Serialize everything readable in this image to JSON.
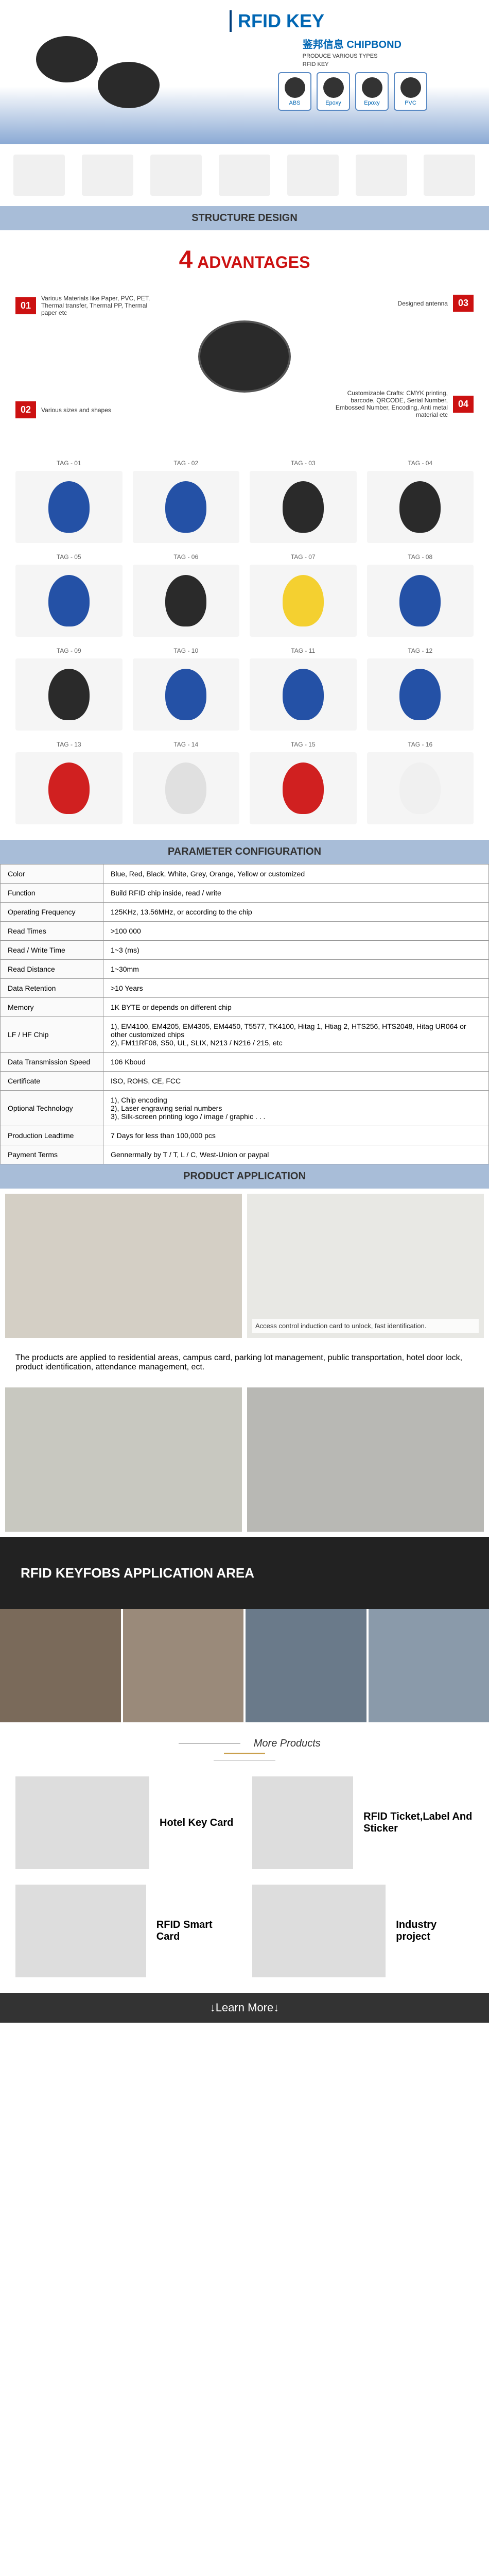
{
  "hero": {
    "title": "RFID KEY",
    "brand": "CHIPBOND",
    "brand_cn": "鉴邦信息",
    "brand_sub1": "PRODUCE VARIOUS TYPES",
    "brand_sub2": "RFID KEY",
    "types": [
      "ABS",
      "Epoxy",
      "Epoxy",
      "PVC"
    ]
  },
  "section_headers": {
    "structure": "STRUCTURE DESIGN",
    "params": "PARAMETER CONFIGURATION",
    "application": "PRODUCT APPLICATION"
  },
  "advantages": {
    "number": "4",
    "word": "ADVANTAGES",
    "items": [
      {
        "num": "01",
        "text": "Various Materials like Paper, PVC, PET, Thermal transfer, Thermal PP, Thermal paper etc"
      },
      {
        "num": "02",
        "text": "Various sizes and shapes"
      },
      {
        "num": "03",
        "text": "Designed antenna"
      },
      {
        "num": "04",
        "text": "Customizable Crafts: CMYK printing, barcode, QRCODE, Serial Number, Embossed Number, Encoding, Anti metal material etc"
      }
    ]
  },
  "tags": [
    {
      "label": "TAG - 01",
      "color": "#2451a6"
    },
    {
      "label": "TAG - 02",
      "color": "#2451a6"
    },
    {
      "label": "TAG - 03",
      "color": "#2a2a2a"
    },
    {
      "label": "TAG - 04",
      "color": "#2a2a2a"
    },
    {
      "label": "TAG - 05",
      "color": "#2451a6"
    },
    {
      "label": "TAG - 06",
      "color": "#2a2a2a"
    },
    {
      "label": "TAG - 07",
      "color": "#f4d030"
    },
    {
      "label": "TAG - 08",
      "color": "#2451a6"
    },
    {
      "label": "TAG - 09",
      "color": "#2a2a2a"
    },
    {
      "label": "TAG - 10",
      "color": "#2451a6"
    },
    {
      "label": "TAG - 11",
      "color": "#2451a6"
    },
    {
      "label": "TAG - 12",
      "color": "#2451a6"
    },
    {
      "label": "TAG - 13",
      "color": "#d02020"
    },
    {
      "label": "TAG - 14",
      "color": "#e0e0e0"
    },
    {
      "label": "TAG - 15",
      "color": "#d02020"
    },
    {
      "label": "TAG - 16",
      "color": "#f0f0f0"
    }
  ],
  "params": [
    [
      "Color",
      "Blue, Red, Black, White, Grey, Orange, Yellow or customized"
    ],
    [
      "Function",
      "Build RFID chip inside, read / write"
    ],
    [
      "Operating Frequency",
      "125KHz, 13.56MHz, or according to the chip"
    ],
    [
      "Read Times",
      ">100 000"
    ],
    [
      "Read / Write Time",
      "1~3 (ms)"
    ],
    [
      "Read Distance",
      "1~30mm"
    ],
    [
      "Data Retention",
      ">10 Years"
    ],
    [
      "Memory",
      "1K BYTE or depends on different chip"
    ],
    [
      "LF / HF Chip",
      "1), EM4100, EM4205, EM4305, EM4450, T5577, TK4100, Hitag 1, Htiag 2, HTS256, HTS2048, Hitag UR064 or other customized chips\n2), FM11RF08, S50, UL, SLIX, N213 / N216 / 215, etc"
    ],
    [
      "Data Transmission Speed",
      "106 Kboud"
    ],
    [
      "Certificate",
      "ISO, ROHS, CE, FCC"
    ],
    [
      "Optional Technology",
      "1), Chip encoding\n2), Laser engraving serial numbers\n3), Silk-screen printing logo / image / graphic . . ."
    ],
    [
      "Production Leadtime",
      "7 Days for less than 100,000 pcs"
    ],
    [
      "Payment Terms",
      "Gennermally by T / T, L / C, West-Union or paypal"
    ]
  ],
  "application": {
    "caption1": "Access control induction card to unlock, fast identification.",
    "desc": "The products are applied to residential areas, campus card, parking lot management, public transportation, hotel door lock, product identification, attendance management, ect.",
    "banner": "RFID KEYFOBS APPLICATION AREA"
  },
  "more": {
    "title": "More Products",
    "items": [
      {
        "label": "Hotel Key Card"
      },
      {
        "label": "RFID Ticket,Label And Sticker"
      },
      {
        "label": "RFID Smart Card"
      },
      {
        "label": "Industry project"
      }
    ]
  },
  "learn_more": "↓Learn More↓",
  "colors": {
    "header_bg": "#a8bdd8",
    "accent_red": "#c11",
    "accent_blue": "#0066b3",
    "accent_gold": "#c9a04d"
  }
}
